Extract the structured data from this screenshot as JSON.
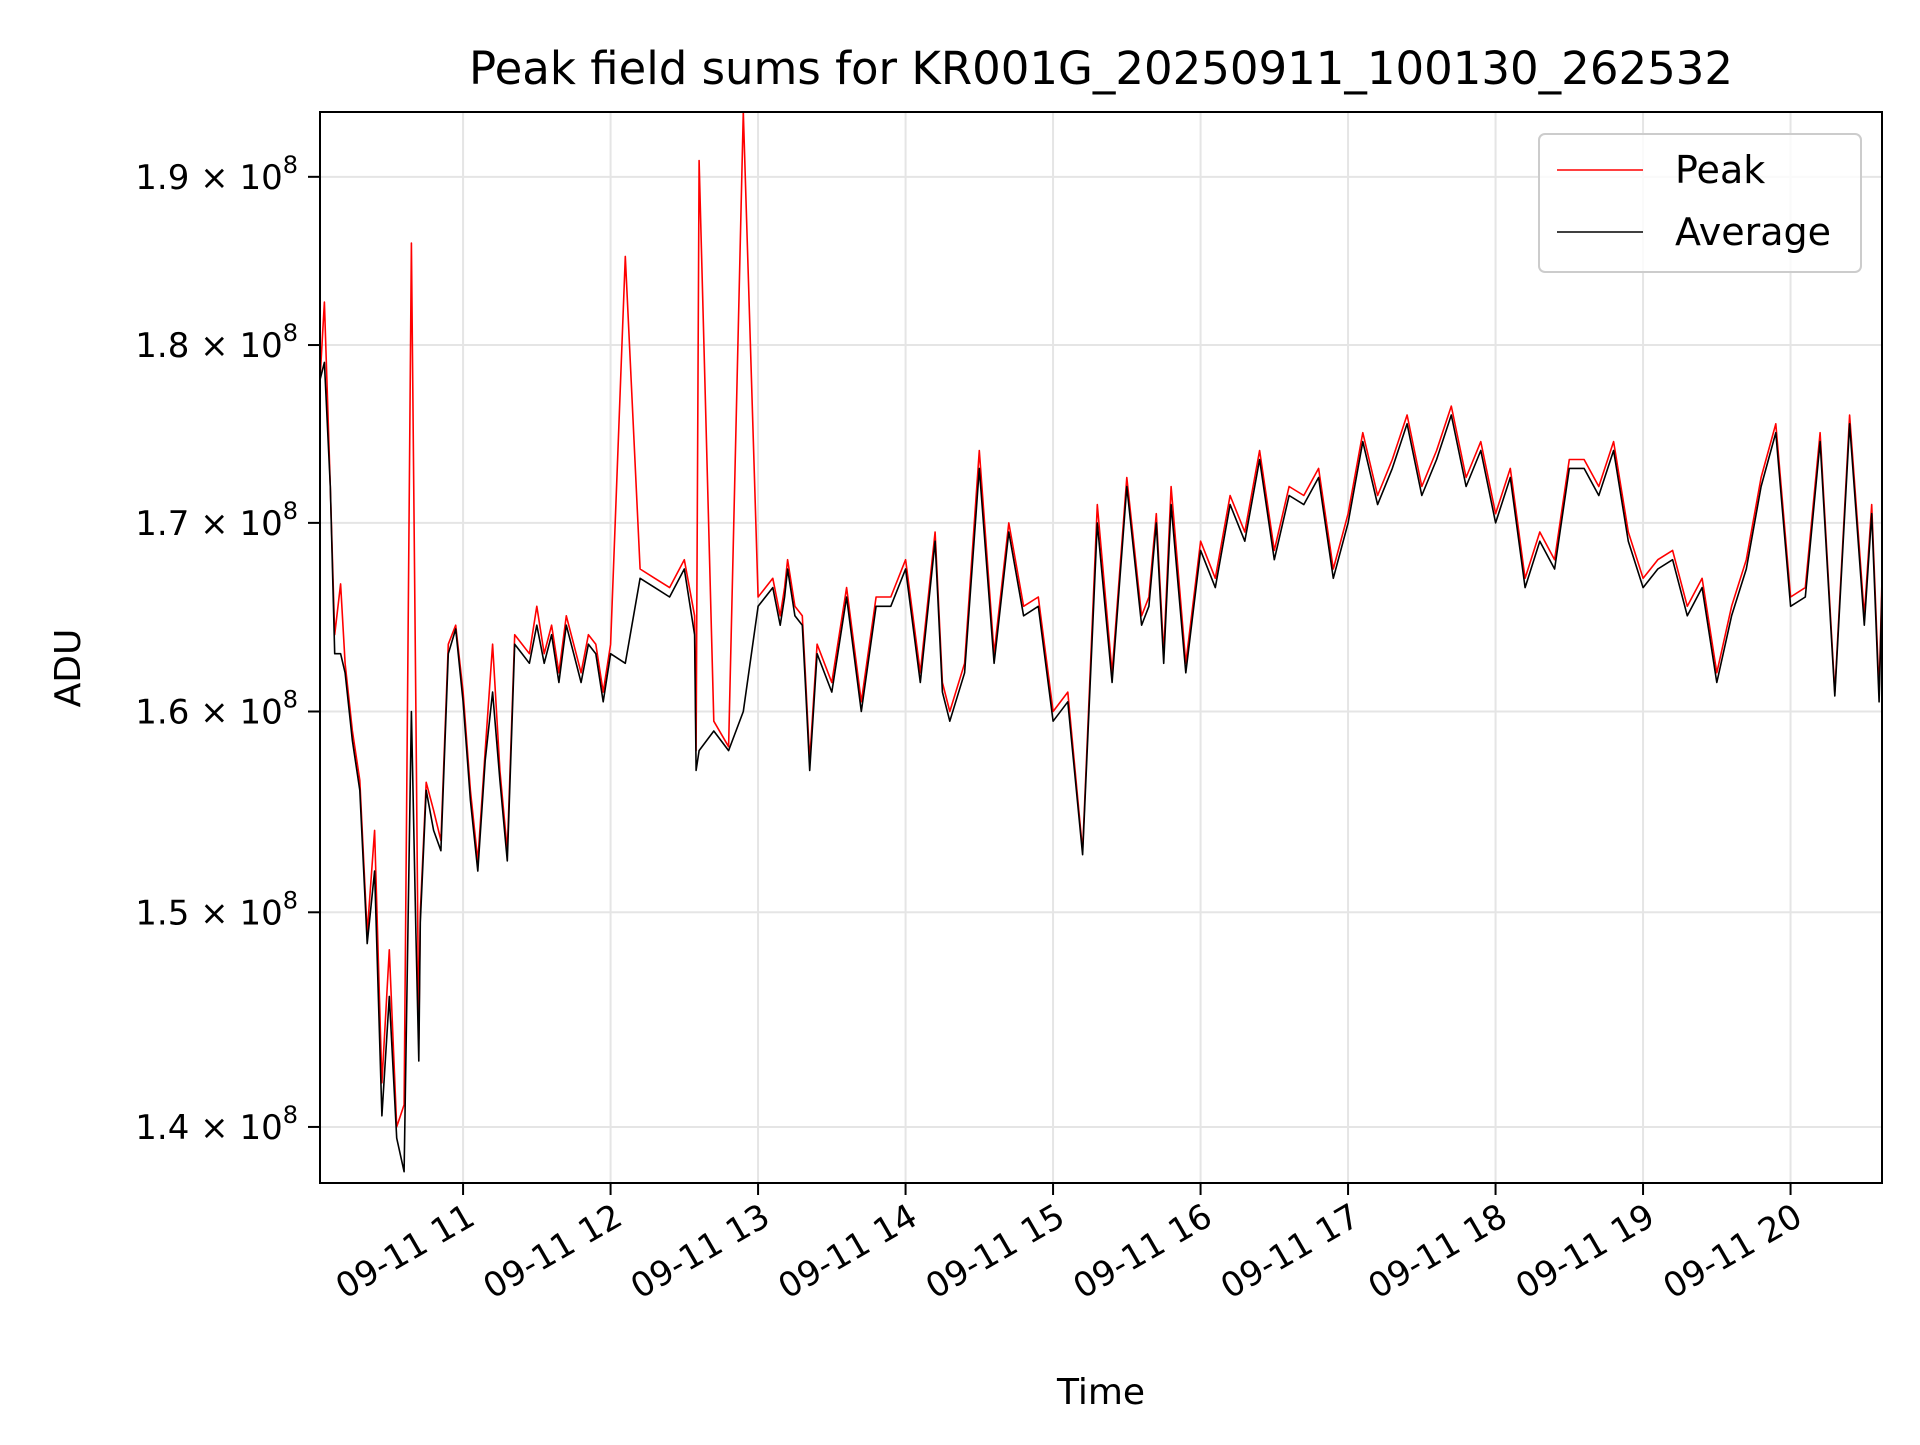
{
  "chart_data": {
    "type": "line",
    "title": "Peak field sums for KR001G_20250911_100130_262532",
    "xlabel": "Time",
    "ylabel": "ADU",
    "yscale": "log",
    "ylim": [
      137500000,
      194000000
    ],
    "xlim_hours": [
      10.03,
      20.62
    ],
    "grid": true,
    "legend_position": "upper right",
    "x_tick_labels": [
      "09-11 11",
      "09-11 12",
      "09-11 13",
      "09-11 14",
      "09-11 15",
      "09-11 16",
      "09-11 17",
      "09-11 18",
      "09-11 19",
      "09-11 20"
    ],
    "x_tick_hours": [
      11,
      12,
      13,
      14,
      15,
      16,
      17,
      18,
      19,
      20
    ],
    "y_ticks": [
      {
        "value": 140000000,
        "mantissa": "1.4",
        "base": "× 10",
        "exp": "8"
      },
      {
        "value": 150000000,
        "mantissa": "1.5",
        "base": "× 10",
        "exp": "8"
      },
      {
        "value": 160000000,
        "mantissa": "1.6",
        "base": "× 10",
        "exp": "8"
      },
      {
        "value": 170000000,
        "mantissa": "1.7",
        "base": "× 10",
        "exp": "8"
      },
      {
        "value": 180000000,
        "mantissa": "1.8",
        "base": "× 10",
        "exp": "8"
      },
      {
        "value": 190000000,
        "mantissa": "1.9",
        "base": "× 10",
        "exp": "8"
      }
    ],
    "series": [
      {
        "name": "Peak",
        "color": "#ff0000",
        "x_hours": [
          10.03,
          10.06,
          10.1,
          10.13,
          10.17,
          10.2,
          10.25,
          10.3,
          10.35,
          10.4,
          10.45,
          10.5,
          10.55,
          10.6,
          10.65,
          10.68,
          10.7,
          10.71,
          10.75,
          10.8,
          10.85,
          10.9,
          10.95,
          11.0,
          11.05,
          11.1,
          11.15,
          11.2,
          11.25,
          11.3,
          11.35,
          11.4,
          11.45,
          11.5,
          11.55,
          11.6,
          11.65,
          11.7,
          11.75,
          11.8,
          11.85,
          11.9,
          11.95,
          12.0,
          12.1,
          12.2,
          12.3,
          12.4,
          12.5,
          12.57,
          12.58,
          12.6,
          12.7,
          12.8,
          12.9,
          13.0,
          13.1,
          13.15,
          13.18,
          13.2,
          13.25,
          13.3,
          13.32,
          13.35,
          13.4,
          13.5,
          13.6,
          13.7,
          13.8,
          13.9,
          14.0,
          14.1,
          14.2,
          14.25,
          14.3,
          14.4,
          14.5,
          14.6,
          14.7,
          14.8,
          14.9,
          15.0,
          15.1,
          15.2,
          15.3,
          15.4,
          15.5,
          15.6,
          15.65,
          15.7,
          15.75,
          15.8,
          15.9,
          16.0,
          16.1,
          16.2,
          16.3,
          16.4,
          16.5,
          16.6,
          16.7,
          16.8,
          16.9,
          17.0,
          17.1,
          17.2,
          17.3,
          17.4,
          17.5,
          17.6,
          17.7,
          17.8,
          17.9,
          18.0,
          18.1,
          18.2,
          18.3,
          18.4,
          18.5,
          18.6,
          18.7,
          18.8,
          18.9,
          19.0,
          19.1,
          19.2,
          19.3,
          19.4,
          19.5,
          19.6,
          19.7,
          19.8,
          19.9,
          20.0,
          20.1,
          20.2,
          20.3,
          20.4,
          20.5,
          20.55,
          20.6,
          20.62
        ],
        "values": [
          178000000,
          182500000,
          172000000,
          164000000,
          166700000,
          162500000,
          159000000,
          156500000,
          149000000,
          154000000,
          142000000,
          148200000,
          140000000,
          141000000,
          186000000,
          160000000,
          144000000,
          150000000,
          156400000,
          155000000,
          153500000,
          163500000,
          164500000,
          161000000,
          156000000,
          152500000,
          158000000,
          163500000,
          157000000,
          153000000,
          164000000,
          163500000,
          163000000,
          165500000,
          163000000,
          164500000,
          162000000,
          165000000,
          163500000,
          162000000,
          164000000,
          163500000,
          161000000,
          163500000,
          185200000,
          167500000,
          167000000,
          166500000,
          168000000,
          165000000,
          158000000,
          191000000,
          159500000,
          158200000,
          194000000,
          166000000,
          167000000,
          165000000,
          166500000,
          168000000,
          165500000,
          165000000,
          162000000,
          157500000,
          163500000,
          161500000,
          166500000,
          160500000,
          166000000,
          166000000,
          168000000,
          162000000,
          169500000,
          161500000,
          160000000,
          162500000,
          174000000,
          163000000,
          170000000,
          165500000,
          166000000,
          160000000,
          161000000,
          153000000,
          171000000,
          162000000,
          172500000,
          165000000,
          166000000,
          170500000,
          163000000,
          172000000,
          162500000,
          169000000,
          167000000,
          171500000,
          169500000,
          174000000,
          168500000,
          172000000,
          171500000,
          173000000,
          167500000,
          170500000,
          175000000,
          171500000,
          173500000,
          176000000,
          172000000,
          174000000,
          176500000,
          172500000,
          174500000,
          170500000,
          173000000,
          167000000,
          169500000,
          168000000,
          173500000,
          173500000,
          172000000,
          174500000,
          169500000,
          167000000,
          168000000,
          168500000,
          165500000,
          167000000,
          162000000,
          165500000,
          168000000,
          172500000,
          175500000,
          166000000,
          166500000,
          175000000,
          161000000,
          176000000,
          165000000,
          171000000,
          161000000,
          167000000
        ]
      },
      {
        "name": "Average",
        "color": "#000000",
        "x_hours": [
          10.03,
          10.06,
          10.1,
          10.13,
          10.17,
          10.2,
          10.25,
          10.3,
          10.35,
          10.4,
          10.45,
          10.5,
          10.55,
          10.6,
          10.65,
          10.68,
          10.7,
          10.71,
          10.75,
          10.8,
          10.85,
          10.9,
          10.95,
          11.0,
          11.05,
          11.1,
          11.15,
          11.2,
          11.25,
          11.3,
          11.35,
          11.4,
          11.45,
          11.5,
          11.55,
          11.6,
          11.65,
          11.7,
          11.75,
          11.8,
          11.85,
          11.9,
          11.95,
          12.0,
          12.1,
          12.2,
          12.3,
          12.4,
          12.5,
          12.57,
          12.58,
          12.6,
          12.7,
          12.8,
          12.9,
          13.0,
          13.1,
          13.15,
          13.18,
          13.2,
          13.25,
          13.3,
          13.32,
          13.35,
          13.4,
          13.5,
          13.6,
          13.7,
          13.8,
          13.9,
          14.0,
          14.1,
          14.2,
          14.25,
          14.3,
          14.4,
          14.5,
          14.6,
          14.7,
          14.8,
          14.9,
          15.0,
          15.1,
          15.2,
          15.3,
          15.4,
          15.5,
          15.6,
          15.65,
          15.7,
          15.75,
          15.8,
          15.9,
          16.0,
          16.1,
          16.2,
          16.3,
          16.4,
          16.5,
          16.6,
          16.7,
          16.8,
          16.9,
          17.0,
          17.1,
          17.2,
          17.3,
          17.4,
          17.5,
          17.6,
          17.7,
          17.8,
          17.9,
          18.0,
          18.1,
          18.2,
          18.3,
          18.4,
          18.5,
          18.6,
          18.7,
          18.8,
          18.9,
          19.0,
          19.1,
          19.2,
          19.3,
          19.4,
          19.5,
          19.6,
          19.7,
          19.8,
          19.9,
          20.0,
          20.1,
          20.2,
          20.3,
          20.4,
          20.5,
          20.55,
          20.6,
          20.62
        ],
        "values": [
          178000000,
          179000000,
          172000000,
          163000000,
          163000000,
          162000000,
          158500000,
          156000000,
          148500000,
          152000000,
          140500000,
          146000000,
          139500000,
          138000000,
          160000000,
          149000000,
          143000000,
          149500000,
          156000000,
          154000000,
          153000000,
          163000000,
          164300000,
          160500000,
          155500000,
          152000000,
          157500000,
          161000000,
          156500000,
          152500000,
          163500000,
          163000000,
          162500000,
          164500000,
          162500000,
          164000000,
          161500000,
          164500000,
          163000000,
          161500000,
          163500000,
          163000000,
          160500000,
          163000000,
          162500000,
          167000000,
          166500000,
          166000000,
          167500000,
          164000000,
          157000000,
          158000000,
          159000000,
          158000000,
          160000000,
          165500000,
          166500000,
          164500000,
          166000000,
          167500000,
          165000000,
          164500000,
          161500000,
          157000000,
          163000000,
          161000000,
          166000000,
          160000000,
          165500000,
          165500000,
          167500000,
          161500000,
          169000000,
          161000000,
          159500000,
          162000000,
          173000000,
          162500000,
          169500000,
          165000000,
          165500000,
          159500000,
          160500000,
          152800000,
          170000000,
          161500000,
          172000000,
          164500000,
          165500000,
          170000000,
          162500000,
          171000000,
          162000000,
          168500000,
          166500000,
          171000000,
          169000000,
          173500000,
          168000000,
          171500000,
          171000000,
          172500000,
          167000000,
          170000000,
          174500000,
          171000000,
          173000000,
          175500000,
          171500000,
          173500000,
          176000000,
          172000000,
          174000000,
          170000000,
          172500000,
          166500000,
          169000000,
          167500000,
          173000000,
          173000000,
          171500000,
          174000000,
          169000000,
          166500000,
          167500000,
          168000000,
          165000000,
          166500000,
          161500000,
          165000000,
          167500000,
          172000000,
          175000000,
          165500000,
          166000000,
          174500000,
          160800000,
          175500000,
          164500000,
          170500000,
          160500000,
          166500000
        ]
      }
    ]
  }
}
